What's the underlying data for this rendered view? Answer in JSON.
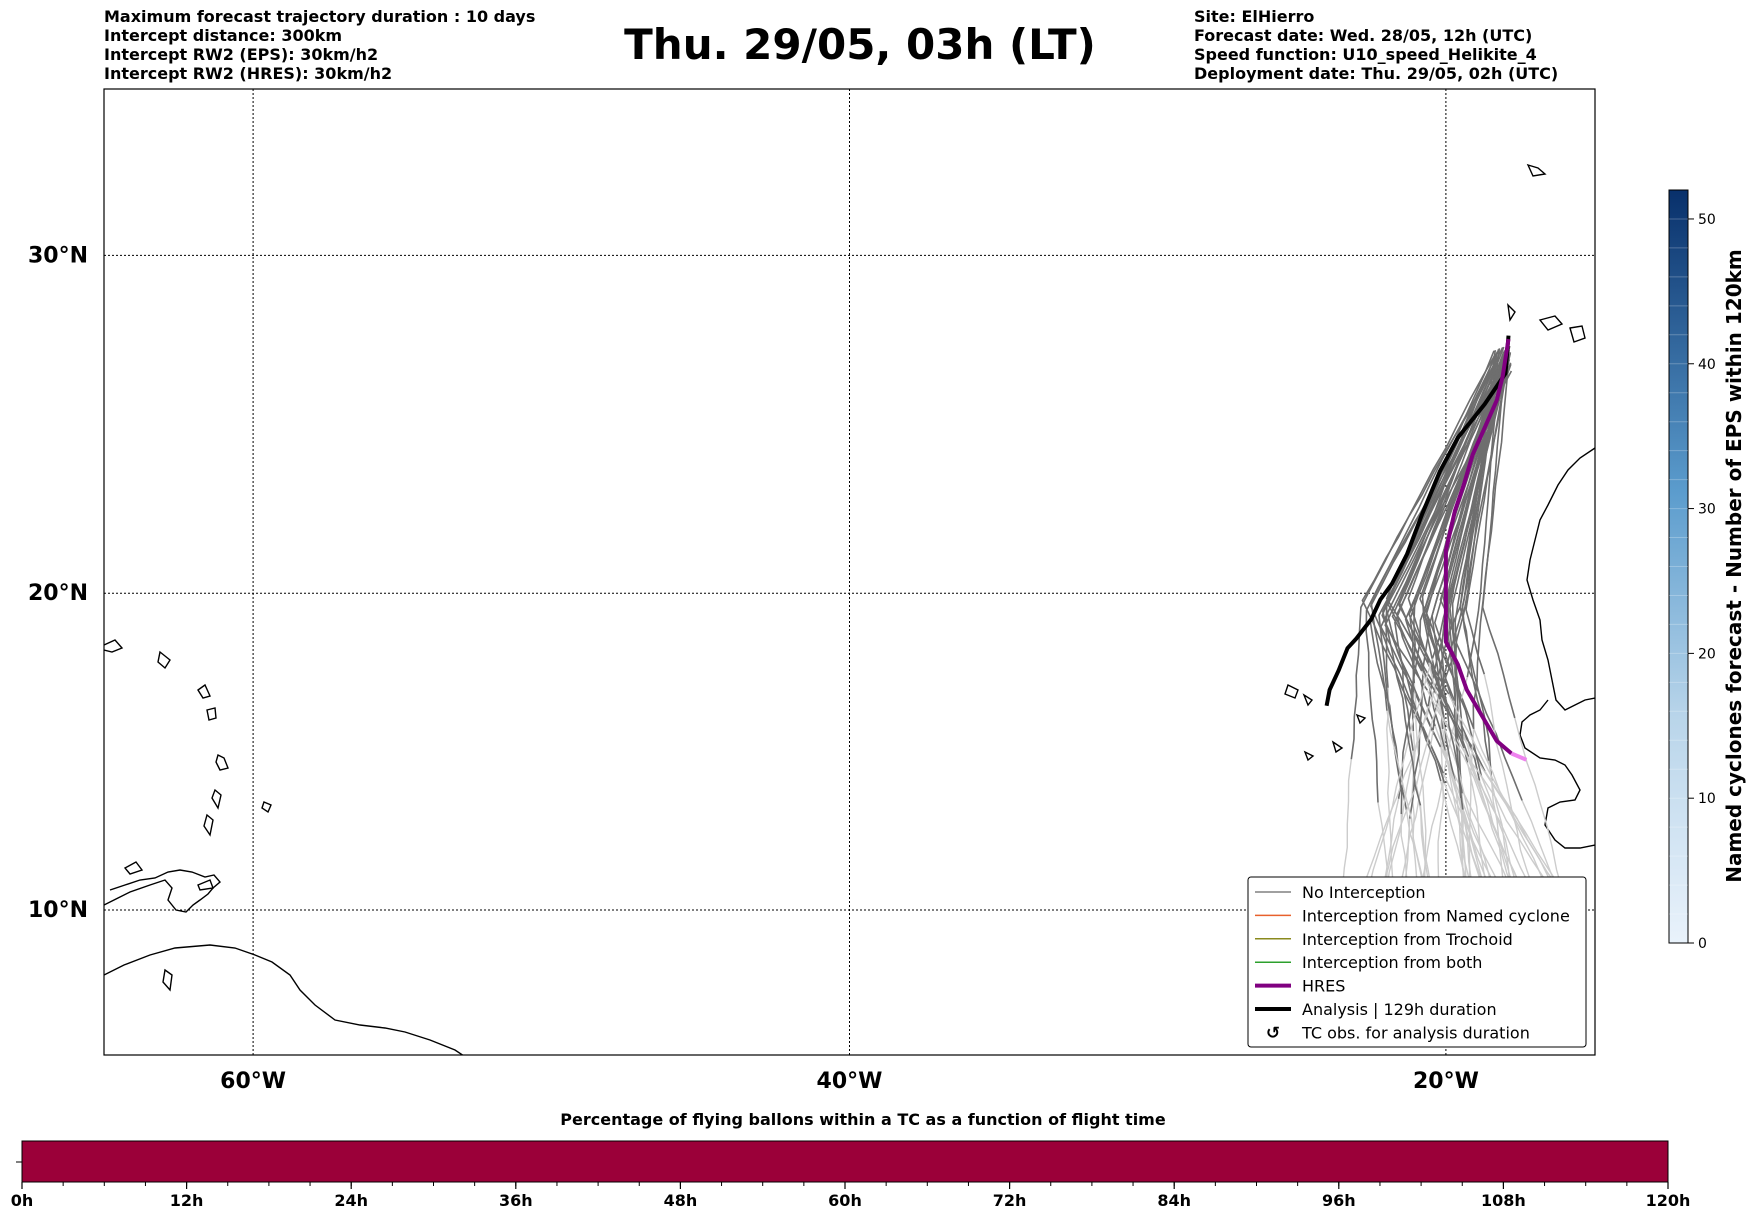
{
  "header": {
    "left_lines": [
      "Maximum forecast trajectory duration : 10 days",
      "Intercept distance: 300km",
      "Intercept RW2 (EPS):  30km/h2",
      "Intercept RW2 (HRES): 30km/h2"
    ],
    "title": "Thu. 29/05, 03h (LT)",
    "right_lines": [
      "Site: ElHierro",
      "Forecast date: Wed. 28/05, 12h (UTC)",
      "Speed function: U10_speed_Helikite_4",
      "Deployment date: Thu. 29/05, 02h (UTC)"
    ]
  },
  "map": {
    "extent": {
      "lon_min": -65,
      "lon_max": -15,
      "lat_min": 5.3,
      "lat_max": 34.6
    },
    "lat_ticks": [
      {
        "lat": 30,
        "label": "30°N"
      },
      {
        "lat": 20,
        "label": "20°N"
      },
      {
        "lat": 10,
        "label": "10°N"
      }
    ],
    "lon_ticks": [
      {
        "lon": -60,
        "label": "60°W"
      },
      {
        "lon": -40,
        "label": "40°W"
      },
      {
        "lon": -20,
        "label": "20°W"
      }
    ]
  },
  "legend": {
    "items": [
      {
        "label": "No Interception",
        "color": "#808080",
        "kind": "thin"
      },
      {
        "label": "Interception from Named cyclone",
        "color": "#e8602c",
        "kind": "thin"
      },
      {
        "label": "Interception from Trochoid",
        "color": "#8a8a1e",
        "kind": "thin"
      },
      {
        "label": "Interception from both",
        "color": "#2ca02c",
        "kind": "thin"
      },
      {
        "label": "HRES",
        "color": "#800080",
        "kind": "thick"
      },
      {
        "label": "Analysis | 129h duration",
        "color": "#000000",
        "kind": "thick"
      },
      {
        "label": "TC obs. for analysis duration",
        "color": "#000000",
        "kind": "symbol"
      }
    ]
  },
  "trajectories": {
    "analysis": [
      [
        -17.9,
        27.7
      ],
      [
        -18.0,
        26.6
      ],
      [
        -18.7,
        25.7
      ],
      [
        -19.6,
        24.7
      ],
      [
        -20.2,
        23.7
      ],
      [
        -20.8,
        22.4
      ],
      [
        -21.3,
        21.2
      ],
      [
        -21.8,
        20.3
      ],
      [
        -22.2,
        19.8
      ],
      [
        -22.5,
        19.2
      ],
      [
        -23.0,
        18.6
      ],
      [
        -23.3,
        18.3
      ],
      [
        -23.6,
        17.6
      ],
      [
        -23.9,
        17.0
      ],
      [
        -24.0,
        16.5
      ]
    ],
    "hres": [
      [
        -17.9,
        27.6
      ],
      [
        -18.1,
        26.5
      ],
      [
        -18.3,
        25.8
      ],
      [
        -18.7,
        25.0
      ],
      [
        -19.1,
        24.2
      ],
      [
        -19.4,
        23.3
      ],
      [
        -19.7,
        22.5
      ],
      [
        -20.0,
        21.3
      ],
      [
        -20.0,
        20.0
      ],
      [
        -20.0,
        18.5
      ],
      [
        -19.6,
        17.8
      ],
      [
        -19.3,
        17.0
      ],
      [
        -18.8,
        16.2
      ],
      [
        -18.3,
        15.4
      ],
      [
        -17.8,
        15.0
      ],
      [
        -17.3,
        14.8
      ]
    ],
    "eps_count": 52
  },
  "colorbar_right": {
    "label": "Named cyclones forecast - Number of EPS within 120km",
    "min": 0,
    "max": 52,
    "ticks": [
      0,
      10,
      20,
      30,
      40,
      50
    ],
    "color_low": "#e9f2fb",
    "color_high": "#08306b"
  },
  "colorbar_bottom": {
    "title": "Percentage of flying ballons within a TC as a function of flight time",
    "fill_color": "#9b0039",
    "ticks": [
      "0h",
      "12h",
      "24h",
      "36h",
      "48h",
      "60h",
      "72h",
      "84h",
      "96h",
      "108h",
      "120h"
    ]
  }
}
